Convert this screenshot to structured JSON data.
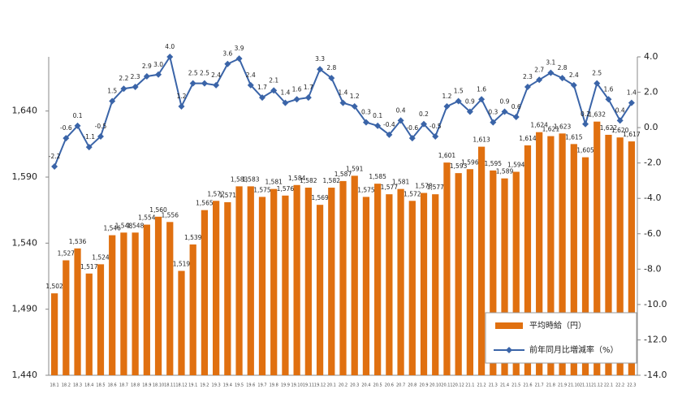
{
  "chart_data": {
    "type": "bar",
    "categories": [
      "18.1",
      "18.2",
      "18.3",
      "18.4",
      "18.5",
      "18.6",
      "18.7",
      "18.8",
      "18.9",
      "18.10",
      "18.11",
      "18.12",
      "19.1",
      "19.2",
      "19.3",
      "19.4",
      "19.5",
      "19.6",
      "19.7",
      "19.8",
      "19.9",
      "19.10",
      "19.11",
      "19.12",
      "20.1",
      "20.2",
      "20.3",
      "20.4",
      "20.5",
      "20.6",
      "20.7",
      "20.8",
      "20.9",
      "20.10",
      "20.11",
      "20.12",
      "21.1",
      "21.2",
      "21.3",
      "21.4",
      "21.5",
      "21.6",
      "21.7",
      "21.8",
      "21.9",
      "21.10",
      "21.11",
      "21.12",
      "22.1",
      "22.2",
      "22.3"
    ],
    "series": [
      {
        "name": "平均時給（円）",
        "type": "bar",
        "color": "#e07010",
        "values": [
          1502,
          1527,
          1536,
          1517,
          1524,
          1546,
          1548,
          1548,
          1554,
          1560,
          1556,
          1519,
          1539,
          1565,
          1572,
          1571,
          1583,
          1583,
          1575,
          1581,
          1576,
          1584,
          1582,
          1569,
          1582,
          1587,
          1591,
          1575,
          1585,
          1577,
          1581,
          1572,
          1578,
          1577,
          1601,
          1593,
          1596,
          1613,
          1595,
          1589,
          1594,
          1614,
          1624,
          1621,
          1623,
          1615,
          1605,
          1632,
          1622,
          1620,
          1617
        ],
        "value_labels": [
          "1,502",
          "1,527",
          "1,536",
          "1,517",
          "1,524",
          "1,546",
          "1,548",
          "1,548",
          "1,554",
          "1,560",
          "1,556",
          "1,519",
          "1,539",
          "1,565",
          "1,572",
          "1,571",
          "1,583",
          "1,583",
          "1,575",
          "1,581",
          "1,576",
          "1,584",
          "1,582",
          "1,569",
          "1,582",
          "1,587",
          "1,591",
          "1,575",
          "1,585",
          "1,577",
          "1,581",
          "1,572",
          "1,578",
          "1,577",
          "1,601",
          "1,593",
          "1,596",
          "1,613",
          "1,595",
          "1,589",
          "1,594",
          "1,614",
          "1,624",
          "1,621",
          "1,623",
          "1,615",
          "1,605",
          "1,632",
          "1,622",
          "1,620",
          "1,617"
        ]
      },
      {
        "name": "前年同月比増減率（%）",
        "type": "line",
        "axis": "y2",
        "color": "#3a64a8",
        "values": [
          -2.2,
          -0.6,
          0.1,
          -1.1,
          -0.5,
          1.5,
          2.2,
          2.3,
          2.9,
          3.0,
          4.0,
          1.2,
          2.5,
          2.5,
          2.4,
          3.6,
          3.9,
          2.4,
          1.7,
          2.1,
          1.4,
          1.6,
          1.7,
          3.3,
          2.8,
          1.4,
          1.2,
          0.3,
          0.1,
          -0.4,
          0.4,
          -0.6,
          0.2,
          -0.5,
          1.2,
          1.5,
          0.9,
          1.6,
          0.3,
          0.9,
          0.6,
          2.3,
          2.7,
          3.1,
          2.8,
          2.4,
          0.2,
          2.5,
          1.6,
          0.4,
          1.4
        ],
        "value_labels": [
          "-2.2",
          "-0.6",
          "0.1",
          "-1.1",
          "-0.5",
          "1.5",
          "2.2",
          "2.3",
          "2.9",
          "3.0",
          "4.0",
          "1.2",
          "2.5",
          "2.5",
          "2.4",
          "3.6",
          "3.9",
          "2.4",
          "1.7",
          "2.1",
          "1.4",
          "1.6",
          "1.7",
          "3.3",
          "2.8",
          "1.4",
          "1.2",
          "0.3",
          "0.1",
          "-0.4",
          "0.4",
          "-0.6",
          "0.2",
          "-0.5",
          "1.2",
          "1.5",
          "0.9",
          "1.6",
          "0.3",
          "0.9",
          "0.6",
          "2.3",
          "2.7",
          "3.1",
          "2.8",
          "2.4",
          "0.2",
          "2.5",
          "1.6",
          "0.4",
          "1.4"
        ]
      }
    ],
    "ylim": [
      1440,
      1681
    ],
    "yticks": [
      {
        "value": 1440,
        "label": "1,440"
      },
      {
        "value": 1490,
        "label": "1,490"
      },
      {
        "value": 1540,
        "label": "1,540"
      },
      {
        "value": 1590,
        "label": "1,590"
      },
      {
        "value": 1640,
        "label": "1,640"
      }
    ],
    "y2lim": [
      -14,
      4
    ],
    "y2ticks": [
      {
        "value": 4,
        "label": "4.0"
      },
      {
        "value": 2,
        "label": "2.0"
      },
      {
        "value": 0,
        "label": "0.0"
      },
      {
        "value": -2,
        "label": "-2.0"
      },
      {
        "value": -4,
        "label": "-4.0"
      },
      {
        "value": -6,
        "label": "-6.0"
      },
      {
        "value": -8,
        "label": "-8.0"
      },
      {
        "value": -10,
        "label": "-10.0"
      },
      {
        "value": -12,
        "label": "-12.0"
      },
      {
        "value": -14,
        "label": "-14.0"
      }
    ],
    "legend": "lower right"
  }
}
